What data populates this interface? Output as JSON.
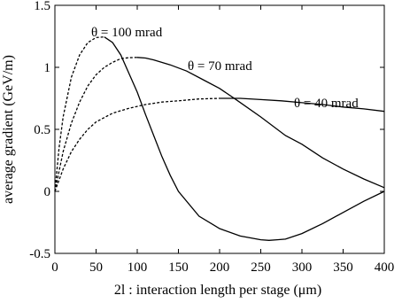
{
  "chart_data": {
    "type": "line",
    "title": "",
    "xlabel": "2l : interaction length per stage (μm)",
    "ylabel": "average gradient (GeV/m)",
    "xlim": [
      0,
      400
    ],
    "ylim": [
      -0.5,
      1.5
    ],
    "xticks": [
      "0",
      "50",
      "100",
      "150",
      "200",
      "250",
      "300",
      "350",
      "400"
    ],
    "yticks": [
      "-0.5",
      "0",
      "0.5",
      "1",
      "1.5"
    ],
    "grid": false,
    "legend": "none",
    "annotations": [
      {
        "text": "θ = 100 mrad",
        "series": "100"
      },
      {
        "text": "θ = 70 mrad",
        "series": "70"
      },
      {
        "text": "θ = 40 mrad",
        "series": "40"
      }
    ],
    "series": [
      {
        "id": "100",
        "style": "dashed-then-solid",
        "x": [
          0,
          5,
          10,
          20,
          30,
          40,
          50,
          60,
          70,
          80,
          90,
          100,
          110,
          120,
          130,
          140,
          150,
          175,
          200,
          225,
          250,
          260,
          270,
          280,
          300,
          325,
          350,
          375,
          400
        ],
        "y": [
          0,
          0.35,
          0.6,
          0.92,
          1.1,
          1.2,
          1.24,
          1.245,
          1.2,
          1.1,
          0.95,
          0.8,
          0.62,
          0.45,
          0.28,
          0.13,
          0.0,
          -0.2,
          -0.3,
          -0.36,
          -0.39,
          -0.395,
          -0.39,
          -0.385,
          -0.34,
          -0.26,
          -0.17,
          -0.08,
          0.0
        ]
      },
      {
        "id": "70",
        "style": "dashed-then-solid",
        "x": [
          0,
          10,
          20,
          30,
          40,
          50,
          60,
          70,
          80,
          90,
          100,
          110,
          120,
          140,
          160,
          180,
          200,
          220,
          250,
          280,
          300,
          325,
          350,
          375,
          400
        ],
        "y": [
          0,
          0.32,
          0.55,
          0.72,
          0.85,
          0.94,
          1.0,
          1.04,
          1.07,
          1.078,
          1.08,
          1.075,
          1.06,
          1.02,
          0.97,
          0.9,
          0.83,
          0.74,
          0.6,
          0.45,
          0.38,
          0.27,
          0.18,
          0.1,
          0.03
        ]
      },
      {
        "id": "40",
        "style": "dashed-then-solid",
        "x": [
          0,
          10,
          20,
          30,
          40,
          50,
          70,
          90,
          110,
          130,
          150,
          175,
          200,
          225,
          250,
          275,
          300,
          325,
          350,
          375,
          400
        ],
        "y": [
          0,
          0.18,
          0.32,
          0.42,
          0.5,
          0.56,
          0.63,
          0.67,
          0.7,
          0.72,
          0.73,
          0.745,
          0.75,
          0.75,
          0.74,
          0.73,
          0.715,
          0.7,
          0.68,
          0.665,
          0.645
        ]
      }
    ]
  }
}
